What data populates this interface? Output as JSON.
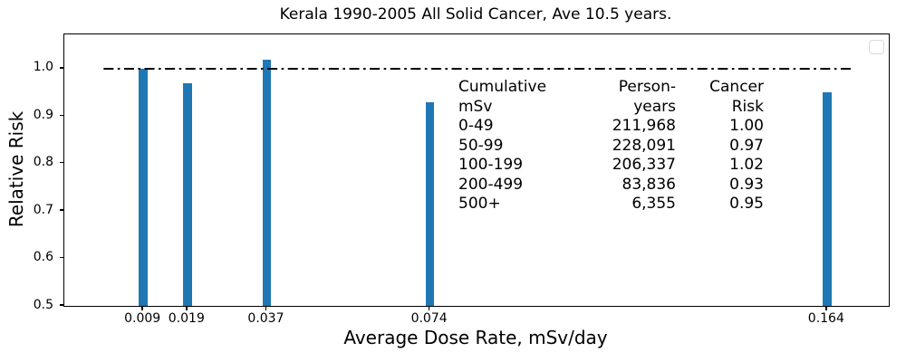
{
  "chart_data": {
    "type": "bar",
    "title": "Kerala 1990-2005 All Solid Cancer, Ave 10.5 years.",
    "xlabel": "Average Dose Rate, mSv/day",
    "ylabel": "Relative Risk",
    "x": [
      0.009,
      0.019,
      0.037,
      0.074,
      0.164
    ],
    "xtick_labels": [
      "0.009",
      "0.019",
      "0.037",
      "0.074",
      "0.164"
    ],
    "values": [
      1.0,
      0.97,
      1.02,
      0.93,
      0.95
    ],
    "bar_color": "#1f77b4",
    "bar_width": 0.002,
    "xlim": [
      -0.0089,
      0.178
    ],
    "ylim": [
      0.5,
      1.0725
    ],
    "yticks": [
      0.5,
      0.6,
      0.7,
      0.8,
      0.9,
      1.0
    ],
    "ytick_labels": [
      "0.5",
      "0.6",
      "0.7",
      "0.8",
      "0.9",
      "1.0"
    ],
    "grid": false,
    "reference_line": {
      "y": 1.0,
      "x_start": 0.0,
      "x_end": 0.17,
      "style": "dash-dot",
      "color": "#000000"
    },
    "legend": {
      "visible": true,
      "position": "upper right",
      "entries": []
    },
    "inset_table": {
      "columns": [
        {
          "header": [
            "Cumulative",
            "mSv"
          ],
          "align": "left"
        },
        {
          "header": [
            "Person-",
            "years"
          ],
          "align": "right"
        },
        {
          "header": [
            "Cancer",
            "Risk"
          ],
          "align": "right"
        }
      ],
      "rows": [
        [
          "0-49",
          "211,968",
          "1.00"
        ],
        [
          "50-99",
          "228,091",
          "0.97"
        ],
        [
          "100-199",
          "206,337",
          "1.02"
        ],
        [
          "200-499",
          "83,836",
          "0.93"
        ],
        [
          "500+",
          "6,355",
          "0.95"
        ]
      ]
    }
  }
}
